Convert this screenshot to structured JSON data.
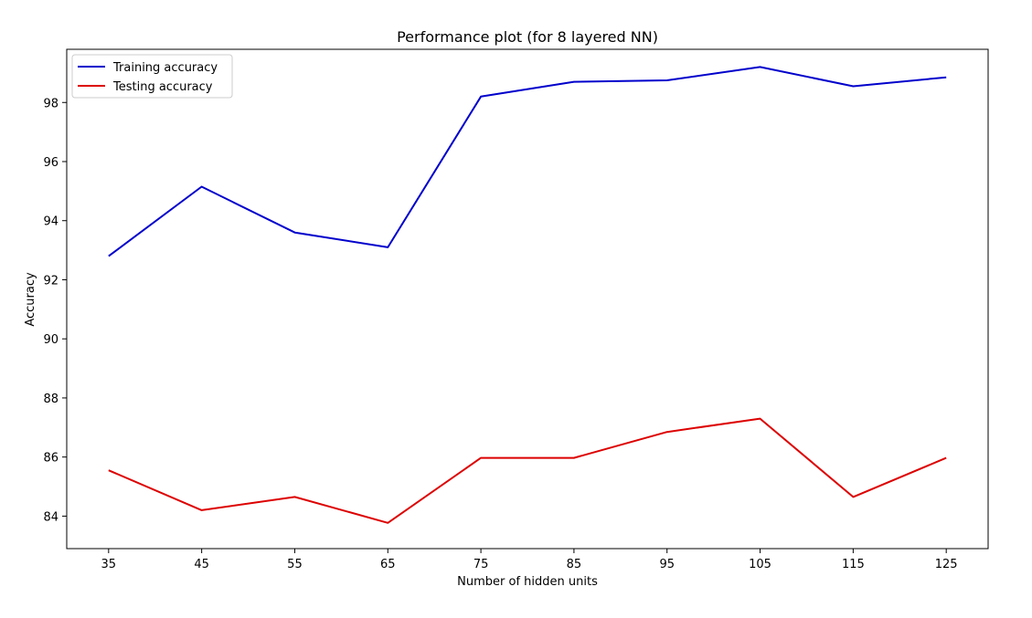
{
  "chart_data": {
    "type": "line",
    "title": "Performance plot (for 8 layered NN)",
    "xlabel": "Number of hidden units",
    "ylabel": "Accuracy",
    "x": [
      35,
      45,
      55,
      65,
      75,
      85,
      95,
      105,
      115,
      125
    ],
    "x_ticks": [
      "35",
      "45",
      "55",
      "65",
      "75",
      "85",
      "95",
      "105",
      "115",
      "125"
    ],
    "y_ticks": [
      84,
      86,
      88,
      90,
      92,
      94,
      96,
      98
    ],
    "ylim": [
      82.9,
      99.8
    ],
    "xlim": [
      30.5,
      129.5
    ],
    "grid": false,
    "legend_position": "upper-left",
    "series": [
      {
        "name": "Training accuracy",
        "color": "#0000cc",
        "values": [
          92.8,
          95.15,
          93.6,
          93.1,
          98.2,
          98.7,
          98.75,
          99.2,
          98.55,
          98.85
        ]
      },
      {
        "name": "Testing accuracy",
        "color": "#dd0000",
        "values": [
          85.55,
          84.2,
          84.65,
          83.77,
          85.97,
          85.97,
          86.85,
          87.3,
          84.65,
          85.97
        ]
      }
    ]
  }
}
